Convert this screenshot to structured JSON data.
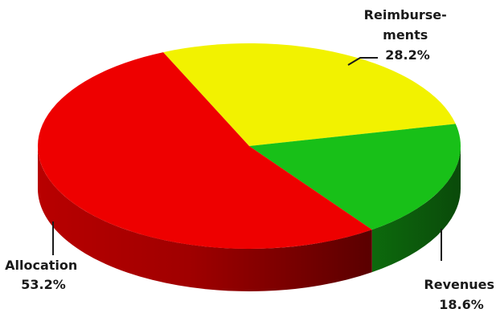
{
  "chart_data": {
    "type": "pie",
    "style": "3d",
    "slices": [
      {
        "label": "Reimburse-ments",
        "label_lines": [
          "Reimburse-",
          "ments"
        ],
        "value": 28.2,
        "value_label": "28.2%",
        "color": "#f2f200"
      },
      {
        "label": "Revenues",
        "label_lines": [
          "Revenues"
        ],
        "value": 18.6,
        "value_label": "18.6%",
        "color": "#18c018"
      },
      {
        "label": "Allocation",
        "label_lines": [
          "Allocation"
        ],
        "value": 53.2,
        "value_label": "53.2%",
        "color": "#ee0000"
      }
    ]
  }
}
